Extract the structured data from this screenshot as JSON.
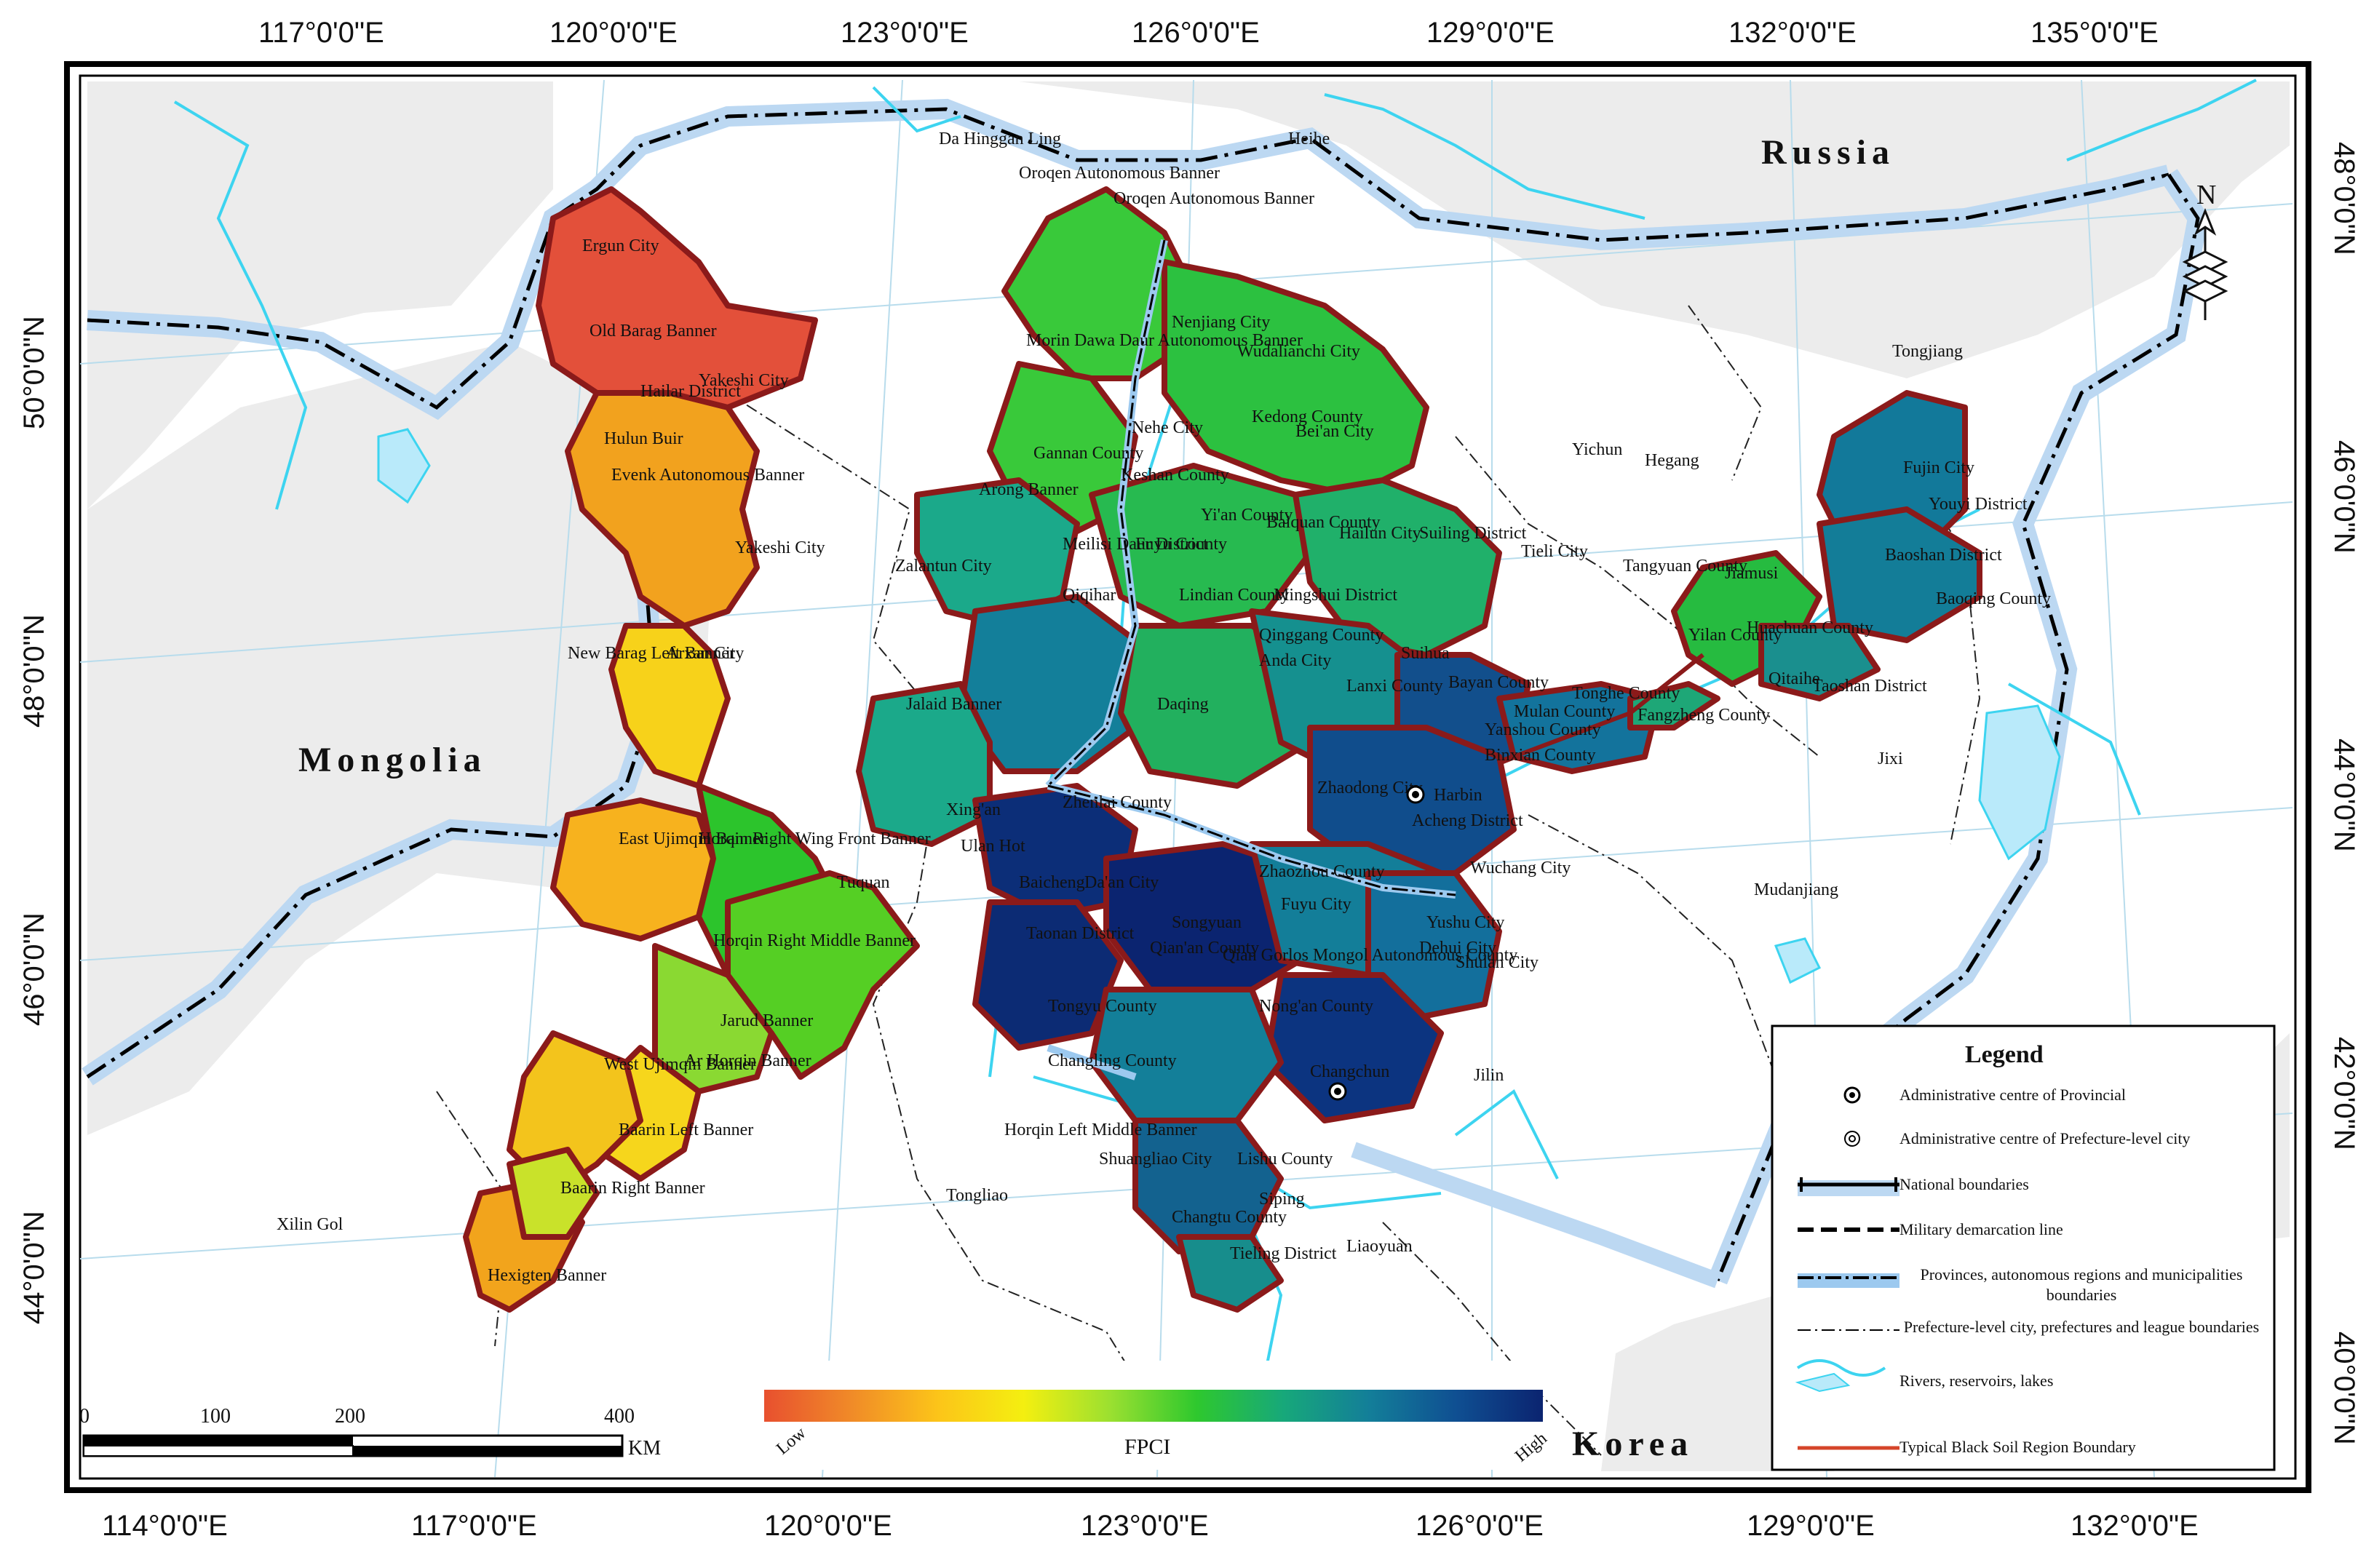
{
  "map": {
    "top_ticks": [
      "117°0'0\"E",
      "120°0'0\"E",
      "123°0'0\"E",
      "126°0'0\"E",
      "129°0'0\"E",
      "132°0'0\"E",
      "135°0'0\"E"
    ],
    "bottom_ticks": [
      "114°0'0\"E",
      "117°0'0\"E",
      "120°0'0\"E",
      "123°0'0\"E",
      "126°0'0\"E",
      "129°0'0\"E",
      "132°0'0\"E"
    ],
    "left_ticks": [
      "50°0'0\"N",
      "48°0'0\"N",
      "46°0'0\"N",
      "44°0'0\"N"
    ],
    "right_ticks": [
      "48°0'0\"N",
      "46°0'0\"N",
      "44°0'0\"N",
      "42°0'0\"N",
      "40°0'0\"N"
    ],
    "countries": {
      "russia": "Russia",
      "mongolia": "Mongolia",
      "korea": "Korea"
    },
    "north_label": "N",
    "scale": {
      "ticks": [
        "0",
        "100",
        "200",
        "400"
      ],
      "unit": "KM"
    },
    "colorbar": {
      "title": "FPCI",
      "low": "Low",
      "high": "High",
      "stops": [
        "#e8502f",
        "#f08a28",
        "#fcc419",
        "#f4ef10",
        "#9be030",
        "#2ec82e",
        "#17a87a",
        "#137e99",
        "#0f4f92",
        "#0b2470"
      ]
    },
    "places": [
      "Da Hinggan Ling",
      "Oroqen Autonomous Banner",
      "Heihe",
      "Oroqen Autonomous Banner",
      "Ergun City",
      "Old Barag Banner",
      "Yakeshi City",
      "Hailar District",
      "Hulun Buir",
      "Evenk Autonomous Banner",
      "Yakeshi City",
      "New Barag Left Banner",
      "Arxan City",
      "East Ujimqin Banner",
      "Horqin Right Wing Front Banner",
      "Horqin Right Middle Banner",
      "Jarud Banner",
      "Ar Horqin Banner",
      "West Ujimqin Banner",
      "Baarin Left Banner",
      "Baarin Right Banner",
      "Hexigten Banner",
      "Xilin Gol",
      "Tongliao",
      "Nenjiang City",
      "Wudalianchi City",
      "Nehe City",
      "Kedong County",
      "Bei'an City",
      "Morin Dawa Daur Autonomous Banner",
      "Gannan County",
      "Arong Banner",
      "Keshan County",
      "Yichun",
      "Meilisi Daur District",
      "Fuyu County",
      "Yi'an County",
      "Baiquan County",
      "Hailun City",
      "Suiling District",
      "Tieli City",
      "Zalantun City",
      "Qiqihar",
      "Lindian County",
      "Mingshui District",
      "Qinggang County",
      "Suihua",
      "Tangyuan County",
      "Jiamusi",
      "Hegang",
      "Tongjiang",
      "Fujin City",
      "Huachuan County",
      "Youyi District",
      "Baoshan District",
      "Baoqing County",
      "Yilan County",
      "Qitaihe",
      "Taoshan District",
      "Jixi",
      "Daqing",
      "Anda City",
      "Lanxi County",
      "Bayan County",
      "Harbin",
      "Tonghe County",
      "Mulan County",
      "Fangzheng County",
      "Jalaid Banner",
      "Xing'an",
      "Ulan Hot",
      "Tuquan",
      "Zhenlai County",
      "Baicheng",
      "Da'an City",
      "Songyuan",
      "Qian'an County",
      "Qian Gorlos Mongol Autonomous County",
      "Fuyu City",
      "Yushu City",
      "Shulan City",
      "Dehui City",
      "Jilin",
      "Mudanjiang",
      "Changchun",
      "Nong'an County",
      "Changling County",
      "Tongyu County",
      "Taonan District",
      "Shuangliao City",
      "Lishu County",
      "Siping",
      "Liaoyuan",
      "Tieling District",
      "Changtu County",
      "Zhaozhou County",
      "Zhaodong City",
      "Acheng District",
      "Wuchang City",
      "Binxian County",
      "Yanshou County",
      "Horqin Left Middle Banner"
    ],
    "legend": {
      "title": "Legend",
      "items": [
        "Administrative centre of Provincial",
        "Administrative centre of Prefecture-level city",
        "National boundaries",
        "Military demarcation line",
        "Provinces, autonomous regions and municipalities boundaries",
        "Prefecture-level city, prefectures and league boundaries",
        "Rivers, reservoirs, lakes",
        "Typical Black Soil Region Boundary"
      ]
    }
  }
}
